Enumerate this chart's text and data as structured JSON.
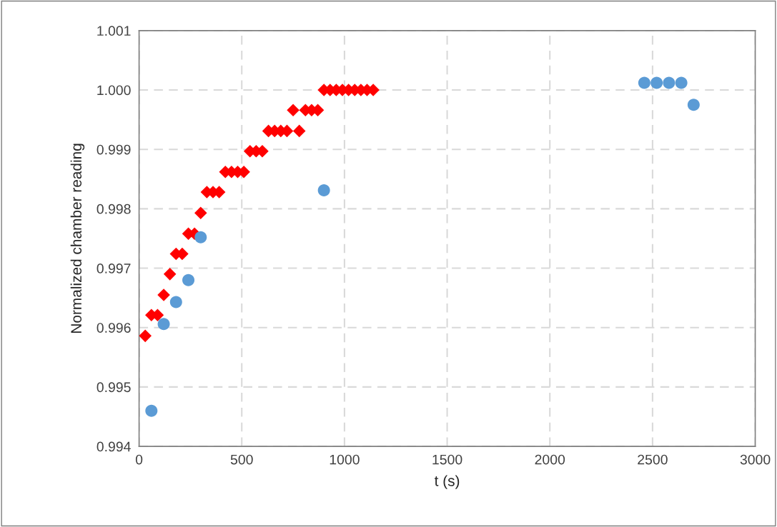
{
  "chart_data": {
    "type": "scatter",
    "xlabel": "t (s)",
    "ylabel": "Normalized chamber reading",
    "xlim": [
      0,
      3000
    ],
    "xticks": [
      0,
      500,
      1000,
      1500,
      2000,
      2500,
      3000
    ],
    "ylim": [
      0.994,
      1.001
    ],
    "yticks": [
      {
        "value": 0.994,
        "label": "0.994"
      },
      {
        "value": 0.995,
        "label": "0.995"
      },
      {
        "value": 0.996,
        "label": "0.996"
      },
      {
        "value": 0.997,
        "label": "0.997"
      },
      {
        "value": 0.998,
        "label": "0.998"
      },
      {
        "value": 0.999,
        "label": "0.999"
      },
      {
        "value": 1.0,
        "label": "1.000"
      },
      {
        "value": 1.001,
        "label": "1.001"
      }
    ],
    "grid": true,
    "series": [
      {
        "color": "#ff0000",
        "marker": "diamond",
        "x": [
          30,
          60,
          90,
          120,
          150,
          180,
          210,
          240,
          270,
          300,
          330,
          360,
          390,
          420,
          450,
          480,
          510,
          540,
          570,
          600,
          630,
          660,
          690,
          720,
          750,
          780,
          810,
          840,
          870,
          900,
          930,
          960,
          990,
          1020,
          1050,
          1080,
          1110,
          1140
        ],
        "values": [
          0.99586,
          0.99621,
          0.99621,
          0.99655,
          0.9969,
          0.99724,
          0.99724,
          0.99758,
          0.99758,
          0.99793,
          0.99828,
          0.99828,
          0.99828,
          0.99862,
          0.99862,
          0.99862,
          0.99862,
          0.99897,
          0.99897,
          0.99897,
          0.99931,
          0.99931,
          0.99931,
          0.99931,
          0.99966,
          0.99931,
          0.99966,
          0.99966,
          0.99966,
          1.0,
          1.0,
          1.0,
          1.0,
          1.0,
          1.0,
          1.0,
          1.0,
          1.0
        ]
      },
      {
        "color": "#5b9bd5",
        "marker": "circle",
        "x": [
          60,
          120,
          180,
          240,
          300,
          900,
          2460,
          2520,
          2580,
          2640,
          2700
        ],
        "values": [
          0.9946,
          0.99606,
          0.99643,
          0.9968,
          0.99752,
          0.99831,
          1.00012,
          1.00012,
          1.00012,
          1.00012,
          0.99975
        ]
      }
    ]
  }
}
